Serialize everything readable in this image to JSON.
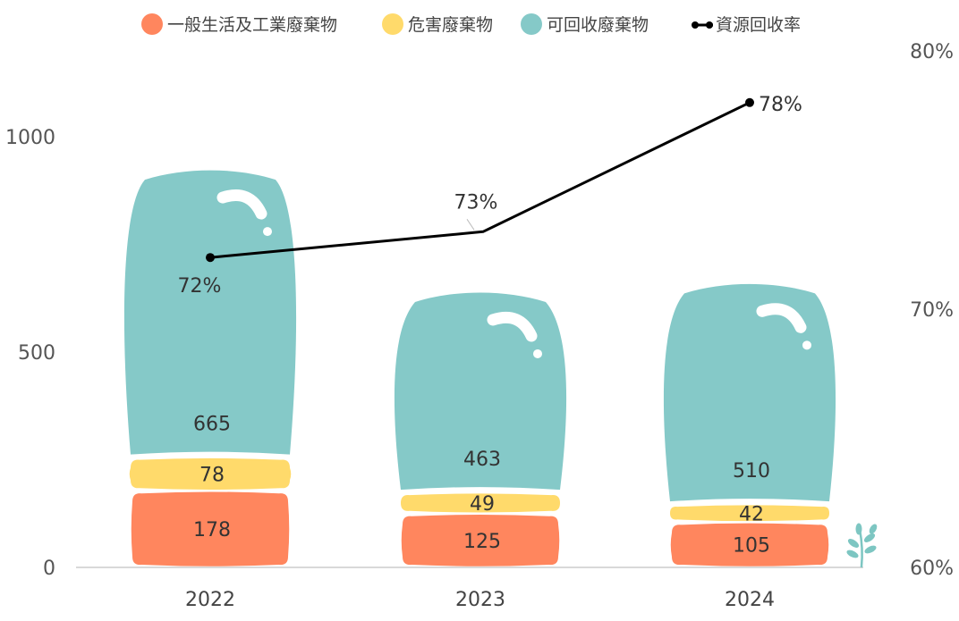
{
  "chart_data": {
    "type": "bar",
    "stacked": true,
    "categories": [
      "2022",
      "2023",
      "2024"
    ],
    "series": [
      {
        "name": "一般生活及工業廢棄物",
        "values": [
          178,
          125,
          105
        ],
        "color": "#FF865E"
      },
      {
        "name": "危害廢棄物",
        "values": [
          78,
          49,
          42
        ],
        "color": "#FFDA6B"
      },
      {
        "name": "可回收廢棄物",
        "values": [
          665,
          463,
          510
        ],
        "color": "#85C9C8"
      }
    ],
    "line_series": {
      "name": "資源回收率",
      "values": [
        72,
        73,
        78
      ],
      "labels": [
        "72%",
        "73%",
        "78%"
      ],
      "color": "#000000",
      "axis": "right"
    },
    "ylim": [
      0,
      1000
    ],
    "yticks": [
      0,
      500,
      1000
    ],
    "y2lim": [
      60,
      80
    ],
    "y2ticks": [
      "60%",
      "70%",
      "80%"
    ],
    "y2tick_values": [
      60,
      70,
      80
    ],
    "legend_position": "top",
    "grid": false,
    "xlabel": "",
    "ylabel": "",
    "title": ""
  },
  "decorations": {
    "sprout_icon": "sprout-icon",
    "bubble_highlight_icon": "bubble-highlight-icon",
    "highlight_color": "#FFFFFF",
    "axis_line_color": "#D9D9D9"
  }
}
